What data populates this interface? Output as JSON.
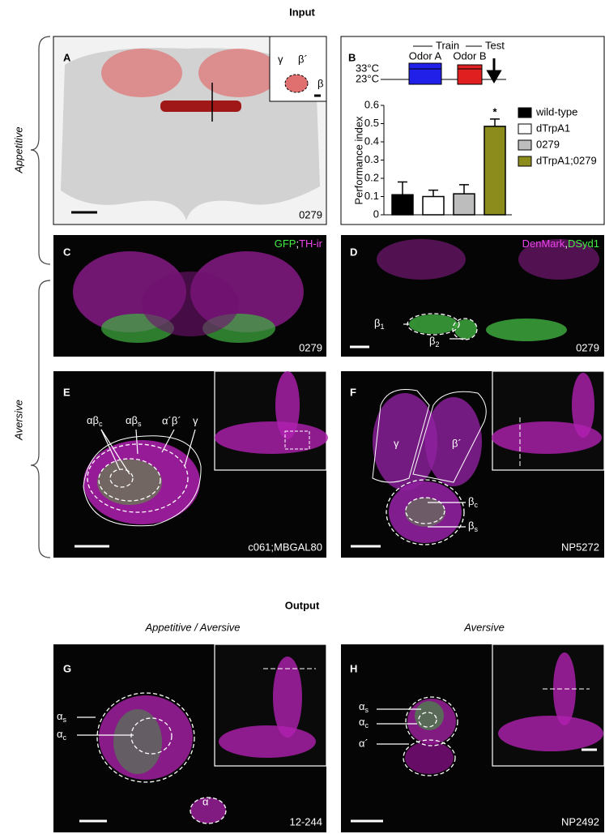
{
  "headings": {
    "input": "Input",
    "output": "Output",
    "appetitive": "Appetitive",
    "aversive": "Aversive",
    "output_left": "Appetitive / Aversive",
    "output_right": "Aversive"
  },
  "panels": {
    "A": {
      "letter": "A",
      "genotype": "0279",
      "inset_labels": [
        "γ",
        "β´",
        "β"
      ]
    },
    "C": {
      "letter": "C",
      "stain": [
        "GFP",
        ";",
        "TH-ir"
      ],
      "genotype": "0279"
    },
    "D": {
      "letter": "D",
      "stain": [
        "DenMark",
        ",",
        "DSyd1"
      ],
      "labels": [
        {
          "text": "β",
          "sub": "1"
        },
        {
          "text": "β",
          "sub": "2"
        }
      ],
      "genotype": "0279"
    },
    "E": {
      "letter": "E",
      "labels": [
        {
          "text": "αβ",
          "sub": "c"
        },
        {
          "text": "αβ",
          "sub": "s"
        },
        "α´β´",
        "γ"
      ],
      "genotype": "c061;MBGAL80"
    },
    "F": {
      "letter": "F",
      "labels": [
        "γ",
        "β´",
        {
          "text": "β",
          "sub": "c"
        },
        {
          "text": "β",
          "sub": "s"
        }
      ],
      "genotype": "NP5272"
    },
    "G": {
      "letter": "G",
      "labels": [
        {
          "text": "α",
          "sub": "s"
        },
        {
          "text": "α",
          "sub": "c"
        },
        "α´"
      ],
      "genotype": "12-244"
    },
    "H": {
      "letter": "H",
      "labels": [
        {
          "text": "α",
          "sub": "s"
        },
        {
          "text": "α",
          "sub": "c"
        },
        "α´"
      ],
      "genotype": "NP2492"
    }
  },
  "chart_data": {
    "type": "bar",
    "letter": "B",
    "ylabel": "Performance index",
    "protocol": {
      "train": "Train",
      "test": "Test",
      "odor_a": "Odor A",
      "odor_b": "Odor B",
      "high": "33°C",
      "low": "23°C"
    },
    "categories": [
      "wild-type",
      "dTrpA1",
      "0279",
      "dTrpA1;0279"
    ],
    "values": [
      0.11,
      0.1,
      0.115,
      0.485
    ],
    "errors": [
      0.07,
      0.035,
      0.05,
      0.04
    ],
    "colors": [
      "#000000",
      "#ffffff",
      "#bdbdbd",
      "#8c8c1c"
    ],
    "annotation": "*",
    "ylim": [
      0,
      0.6
    ],
    "yticks": [
      0,
      0.1,
      0.2,
      0.3,
      0.4,
      0.5,
      0.6
    ]
  }
}
